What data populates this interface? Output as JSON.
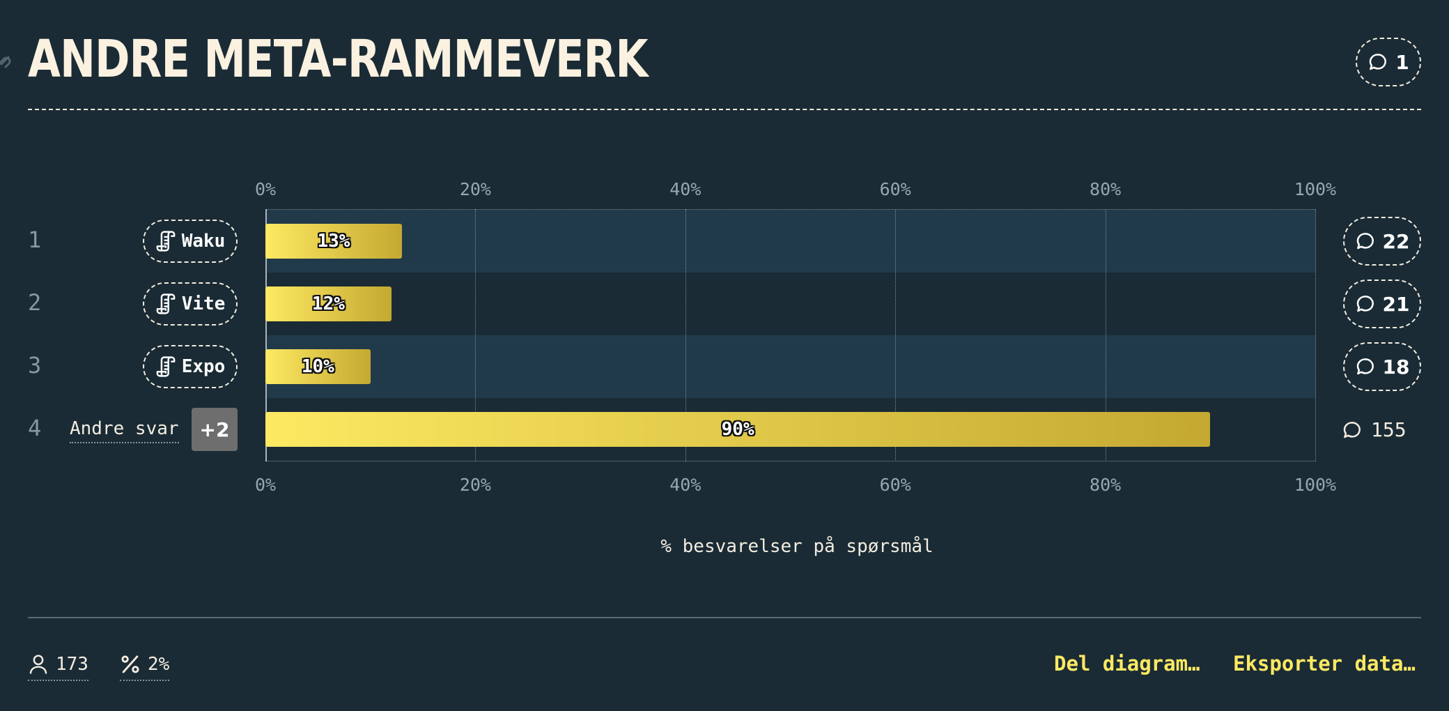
{
  "title": "ANDRE META-RAMMEVERK",
  "title_comments": "1",
  "chart_data": {
    "type": "bar",
    "orientation": "horizontal",
    "categories": [
      "Waku",
      "Vite",
      "Expo",
      "Andre svar"
    ],
    "ranks": [
      "1",
      "2",
      "3",
      "4"
    ],
    "values": [
      13,
      12,
      10,
      90
    ],
    "value_labels": [
      "13%",
      "12%",
      "10%",
      "90%"
    ],
    "comment_counts": [
      "22",
      "21",
      "18",
      "155"
    ],
    "other_extra": "+2",
    "xlabel": "% besvarelser på spørsmål",
    "xlim": [
      0,
      100
    ],
    "xticks": [
      "0%",
      "20%",
      "40%",
      "60%",
      "80%",
      "100%"
    ],
    "grid": true
  },
  "footer": {
    "respondents": "173",
    "percent": "2%",
    "share_label": "Del diagram…",
    "export_label": "Eksporter data…"
  },
  "colors": {
    "background": "#1a2b35",
    "bar_start": "#fde962",
    "bar_end": "#c4a931",
    "row_band": "#213a4a",
    "link": "#fde962"
  }
}
